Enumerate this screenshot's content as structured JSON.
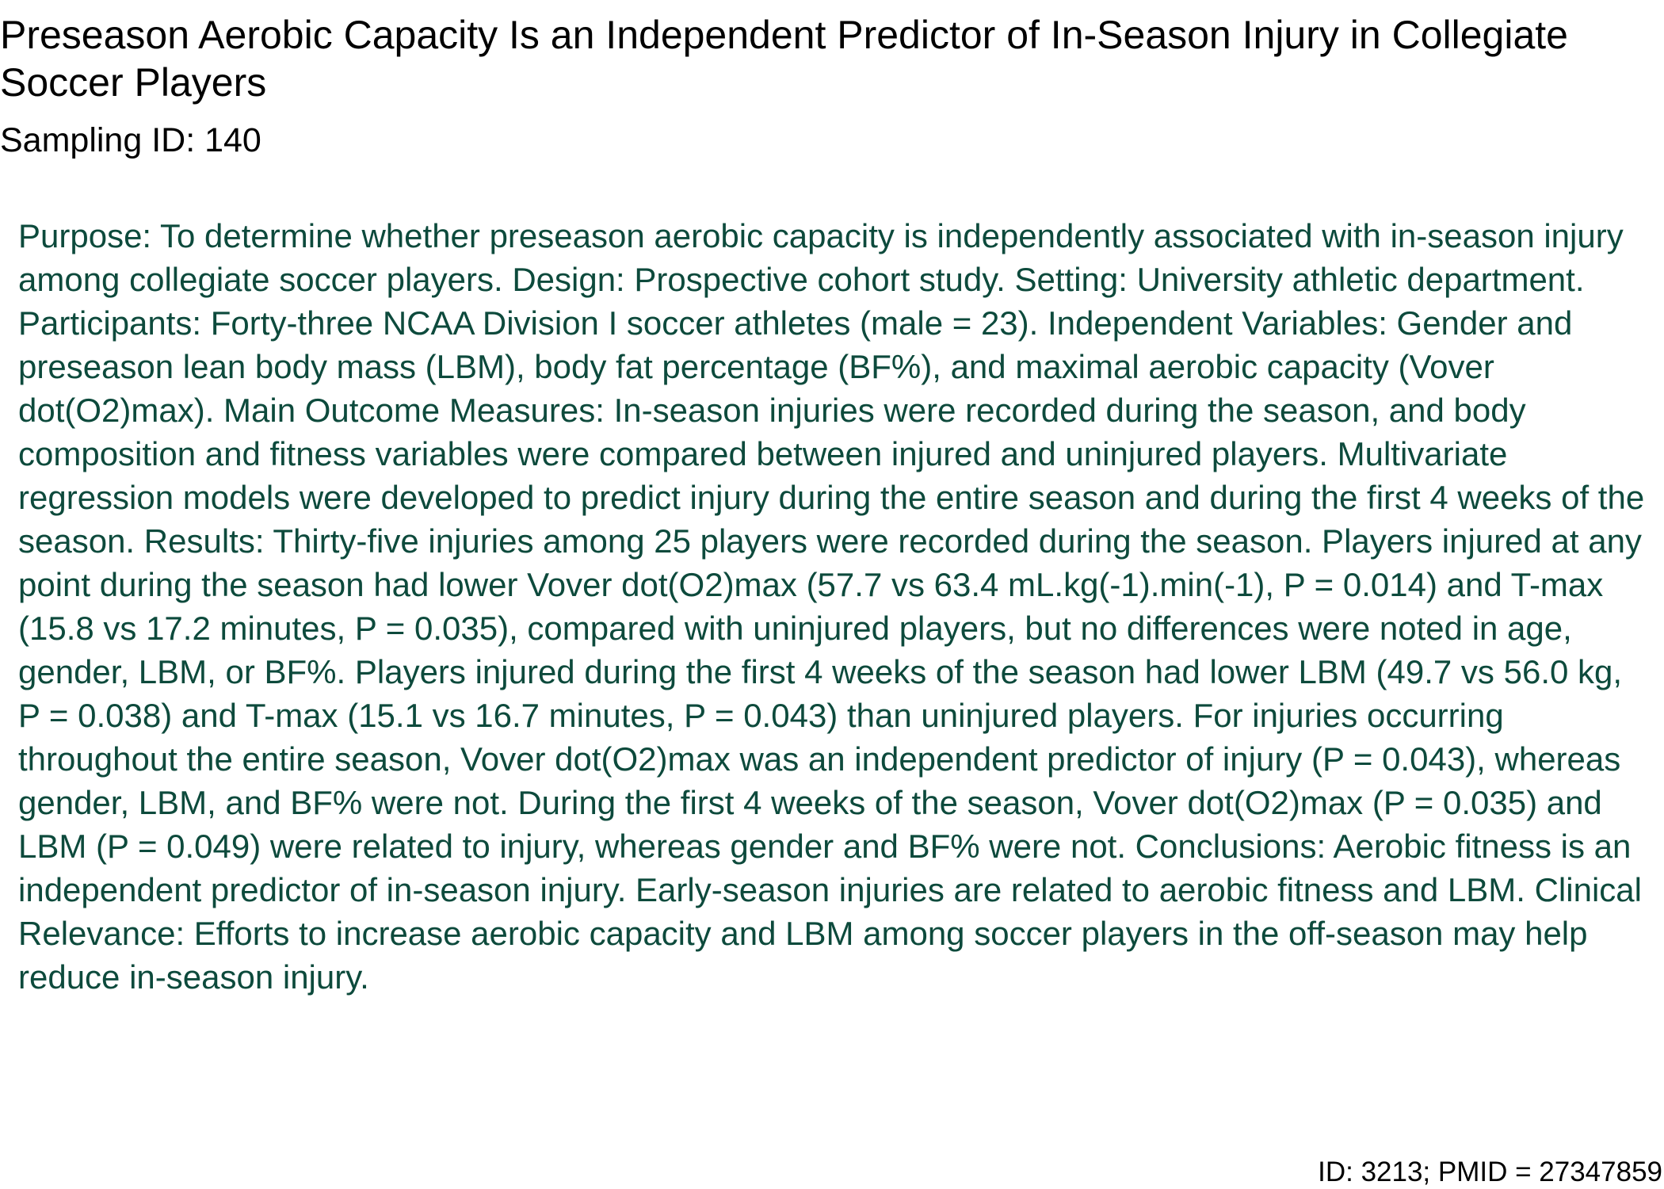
{
  "document": {
    "title": "Preseason Aerobic Capacity Is an Independent Predictor of In-Season Injury in Collegiate Soccer Players",
    "sampling_id": "Sampling ID: 140",
    "abstract": "Purpose: To determine whether preseason aerobic capacity is independently associated with in-season injury among collegiate soccer players. Design: Prospective cohort study. Setting: University athletic department. Participants: Forty-three NCAA Division I soccer athletes (male = 23). Independent Variables: Gender and preseason lean body mass (LBM), body fat percentage (BF%), and maximal aerobic capacity (Vover dot(O2)max). Main Outcome Measures: In-season injuries were recorded during the season, and body composition and fitness variables were compared between injured and uninjured players. Multivariate regression models were developed to predict injury during the entire season and during the first 4 weeks of the season. Results: Thirty-five injuries among 25 players were recorded during the season. Players injured at any point during the season had lower Vover dot(O2)max (57.7 vs 63.4 mL.kg(-1).min(-1), P = 0.014) and T-max (15.8 vs 17.2 minutes, P = 0.035), compared with uninjured players, but no differences were noted in age, gender, LBM, or BF%. Players injured during the first 4 weeks of the season had lower LBM (49.7 vs 56.0 kg, P = 0.038) and T-max (15.1 vs 16.7 minutes, P = 0.043) than uninjured players. For injuries occurring throughout the entire season, Vover dot(O2)max was an independent predictor of injury (P = 0.043), whereas gender, LBM, and BF% were not. During the first 4 weeks of the season, Vover dot(O2)max (P = 0.035) and LBM (P = 0.049) were related to injury, whereas gender and BF% were not. Conclusions: Aerobic fitness is an independent predictor of in-season injury. Early-season injuries are related to aerobic fitness and LBM. Clinical Relevance: Efforts to increase aerobic capacity and LBM among soccer players in the off-season may help reduce in-season injury.",
    "footer_id": "ID: 3213; PMID = 27347859"
  },
  "colors": {
    "title_text": "#000000",
    "abstract_text": "#0d4a3c"
  }
}
